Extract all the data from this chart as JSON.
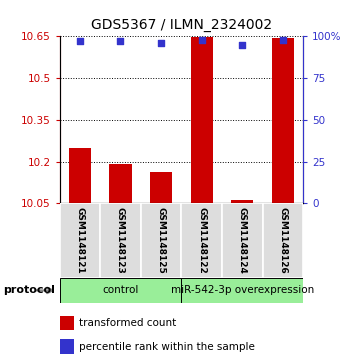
{
  "title": "GDS5367 / ILMN_2324002",
  "samples": [
    "GSM1148121",
    "GSM1148123",
    "GSM1148125",
    "GSM1148122",
    "GSM1148124",
    "GSM1148126"
  ],
  "transformed_count": [
    10.249,
    10.19,
    10.163,
    10.647,
    10.063,
    10.645
  ],
  "percentile_rank": [
    97,
    97,
    96,
    98,
    95,
    98
  ],
  "ymin": 10.05,
  "ymax": 10.65,
  "yticks_left": [
    10.05,
    10.2,
    10.35,
    10.5,
    10.65
  ],
  "yticks_right": [
    0,
    25,
    50,
    75,
    100
  ],
  "bar_color": "#cc0000",
  "dot_color": "#3333cc",
  "protocol_groups": [
    {
      "label": "control",
      "indices": [
        0,
        1,
        2
      ],
      "color": "#99ee99"
    },
    {
      "label": "miR-542-3p overexpression",
      "indices": [
        3,
        4,
        5
      ],
      "color": "#99ee99"
    }
  ],
  "legend_items": [
    {
      "label": "transformed count",
      "color": "#cc0000"
    },
    {
      "label": "percentile rank within the sample",
      "color": "#3333cc"
    }
  ],
  "background_color": "#ffffff",
  "title_fontsize": 10,
  "tick_fontsize": 7.5,
  "sample_fontsize": 6.5,
  "proto_fontsize": 7.5
}
